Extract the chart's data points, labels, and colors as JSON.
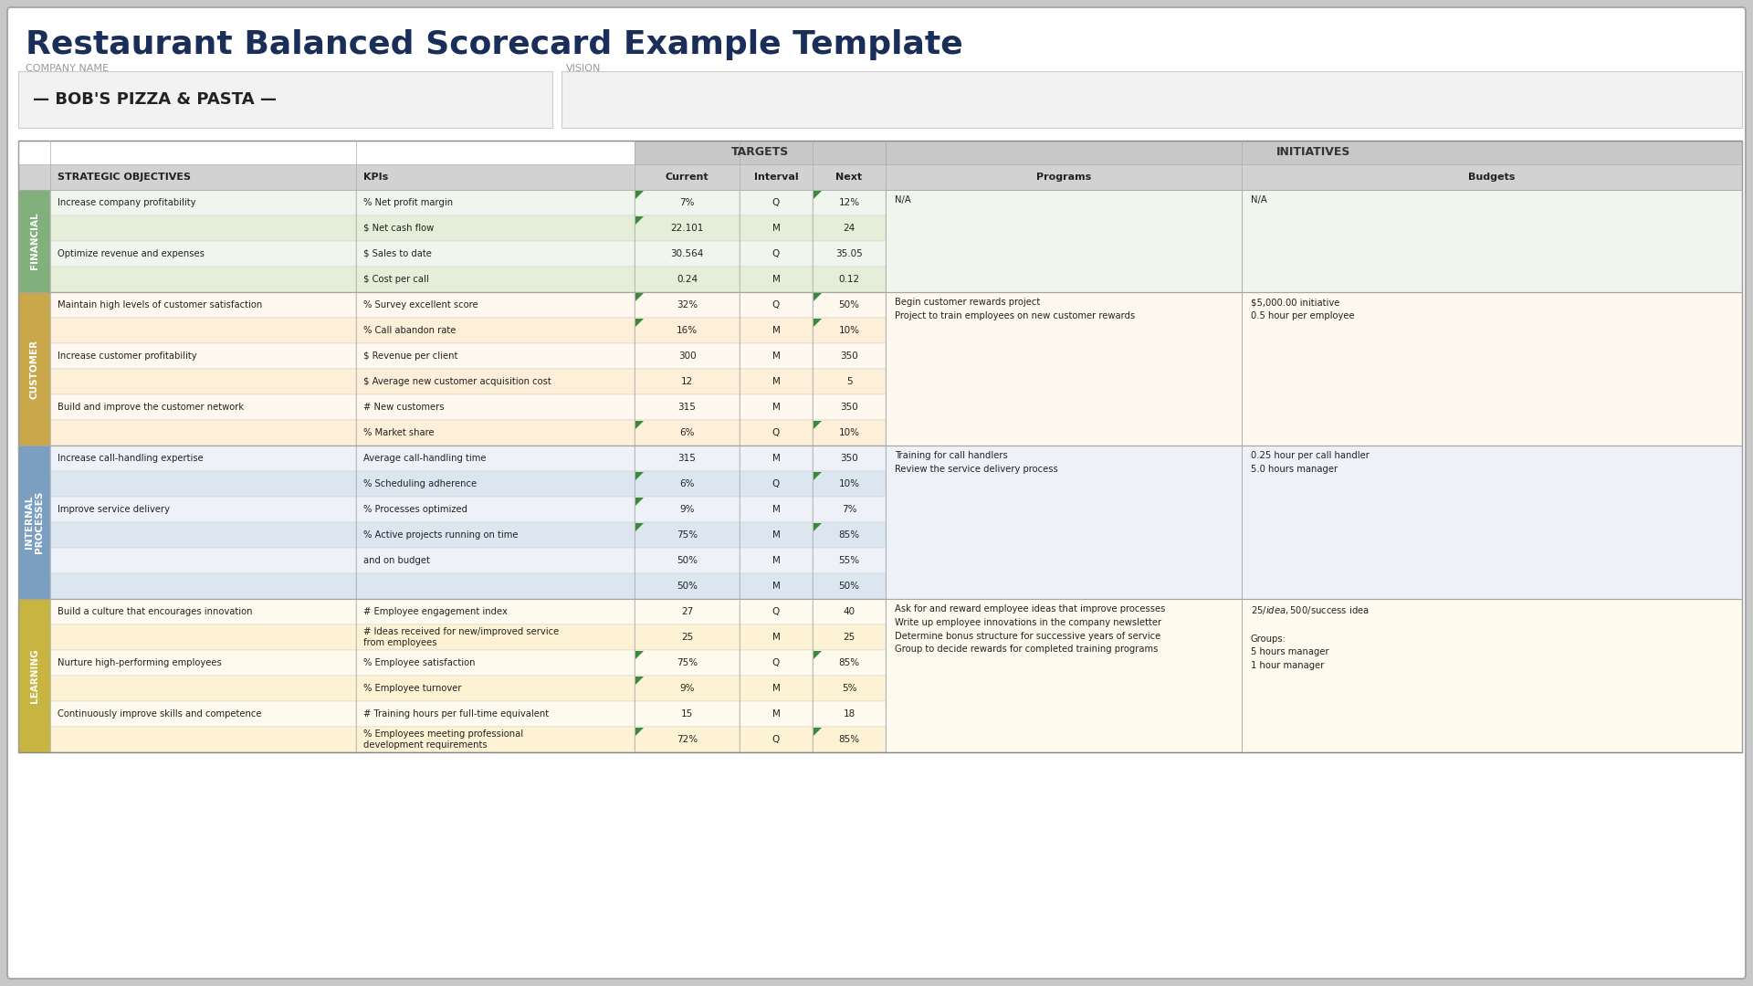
{
  "title": "Restaurant Balanced Scorecard Example Template",
  "company_label": "COMPANY NAME",
  "company_value": "— BOB'S PIZZA & PASTA —",
  "vision_label": "VISION",
  "targets_header": "TARGETS",
  "initiatives_header": "INITIATIVES",
  "title_color": "#1a2e5a",
  "bg_outer": "#c8c8c8",
  "card_color": "#ffffff",
  "header_gray": "#c8c8c8",
  "col_header_gray": "#d4d4d4",
  "sections": [
    {
      "name": "FINANCIAL",
      "label_bg": "#82b07c",
      "row_bgs": [
        "#f0f5ee",
        "#e4eed8"
      ],
      "rows": [
        {
          "obj": "Increase company profitability",
          "kpi": "% Net profit margin",
          "current": "7%",
          "interval": "Q",
          "next": "12%",
          "ac": true,
          "an": true
        },
        {
          "obj": "",
          "kpi": "$ Net cash flow",
          "current": "22.101",
          "interval": "M",
          "next": "24",
          "ac": true,
          "an": false
        },
        {
          "obj": "Optimize revenue and expenses",
          "kpi": "$ Sales to date",
          "current": "30.564",
          "interval": "Q",
          "next": "35.05",
          "ac": false,
          "an": false
        },
        {
          "obj": "",
          "kpi": "$ Cost per call",
          "current": "0.24",
          "interval": "M",
          "next": "0.12",
          "ac": false,
          "an": false
        }
      ],
      "programs": "N/A",
      "budgets": "N/A"
    },
    {
      "name": "CUSTOMER",
      "label_bg": "#c8a84b",
      "row_bgs": [
        "#fef8ef",
        "#fdefd8"
      ],
      "rows": [
        {
          "obj": "Maintain high levels of customer satisfaction",
          "kpi": "% Survey excellent score",
          "current": "32%",
          "interval": "Q",
          "next": "50%",
          "ac": true,
          "an": true
        },
        {
          "obj": "",
          "kpi": "% Call abandon rate",
          "current": "16%",
          "interval": "M",
          "next": "10%",
          "ac": true,
          "an": true
        },
        {
          "obj": "Increase customer profitability",
          "kpi": "$ Revenue per client",
          "current": "300",
          "interval": "M",
          "next": "350",
          "ac": false,
          "an": false
        },
        {
          "obj": "",
          "kpi": "$ Average new customer acquisition cost",
          "current": "12",
          "interval": "M",
          "next": "5",
          "ac": false,
          "an": false
        },
        {
          "obj": "Build and improve the customer network",
          "kpi": "# New customers",
          "current": "315",
          "interval": "M",
          "next": "350",
          "ac": false,
          "an": false
        },
        {
          "obj": "",
          "kpi": "% Market share",
          "current": "6%",
          "interval": "Q",
          "next": "10%",
          "ac": true,
          "an": true
        }
      ],
      "programs": "Begin customer rewards project\nProject to train employees on new customer rewards",
      "budgets": "$5,000.00 initiative\n0.5 hour per employee"
    },
    {
      "name": "INTERNAL\nPROCESSES",
      "label_bg": "#7a9fc0",
      "row_bgs": [
        "#eef2f8",
        "#dce6f0"
      ],
      "rows": [
        {
          "obj": "Increase call-handling expertise",
          "kpi": "Average call-handling time",
          "current": "315",
          "interval": "M",
          "next": "350",
          "ac": false,
          "an": false
        },
        {
          "obj": "",
          "kpi": "% Scheduling adherence",
          "current": "6%",
          "interval": "Q",
          "next": "10%",
          "ac": true,
          "an": true
        },
        {
          "obj": "Improve service delivery",
          "kpi": "% Processes optimized",
          "current": "9%",
          "interval": "M",
          "next": "7%",
          "ac": true,
          "an": false
        },
        {
          "obj": "",
          "kpi": "% Active projects running on time",
          "current": "75%",
          "interval": "M",
          "next": "85%",
          "ac": true,
          "an": true
        },
        {
          "obj": "",
          "kpi": "and on budget",
          "current": "50%",
          "interval": "M",
          "next": "55%",
          "ac": false,
          "an": false
        },
        {
          "obj": "",
          "kpi": "",
          "current": "50%",
          "interval": "M",
          "next": "50%",
          "ac": false,
          "an": false
        }
      ],
      "programs": "Training for call handlers\nReview the service delivery process",
      "budgets": "0.25 hour per call handler\n5.0 hours manager"
    },
    {
      "name": "LEARNING",
      "label_bg": "#c8b440",
      "row_bgs": [
        "#fefaee",
        "#fdf2d4"
      ],
      "rows": [
        {
          "obj": "Build a culture that encourages innovation",
          "kpi": "# Employee engagement index",
          "current": "27",
          "interval": "Q",
          "next": "40",
          "ac": false,
          "an": false
        },
        {
          "obj": "",
          "kpi": "# Ideas received for new/improved service\nfrom employees",
          "current": "25",
          "interval": "M",
          "next": "25",
          "ac": false,
          "an": false
        },
        {
          "obj": "Nurture high-performing employees",
          "kpi": "% Employee satisfaction",
          "current": "75%",
          "interval": "Q",
          "next": "85%",
          "ac": true,
          "an": true
        },
        {
          "obj": "",
          "kpi": "% Employee turnover",
          "current": "9%",
          "interval": "M",
          "next": "5%",
          "ac": true,
          "an": false
        },
        {
          "obj": "Continuously improve skills and competence",
          "kpi": "# Training hours per full-time equivalent",
          "current": "15",
          "interval": "M",
          "next": "18",
          "ac": false,
          "an": false
        },
        {
          "obj": "",
          "kpi": "% Employees meeting professional\ndevelopment requirements",
          "current": "72%",
          "interval": "Q",
          "next": "85%",
          "ac": true,
          "an": true
        }
      ],
      "programs": "Ask for and reward employee ideas that improve processes\nWrite up employee innovations in the company newsletter\nDetermine bonus structure for successive years of service\nGroup to decide rewards for completed training programs",
      "budgets": "$25/idea, $500/success idea\n\nGroups:\n5 hours manager\n1 hour manager"
    }
  ]
}
